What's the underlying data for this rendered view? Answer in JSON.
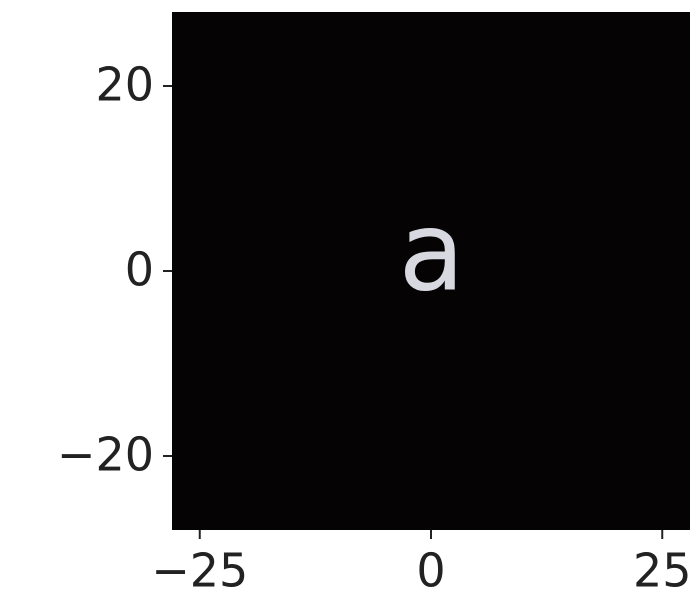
{
  "chart_data": {
    "type": "image",
    "xlim": [
      -28,
      28
    ],
    "ylim": [
      -28,
      28
    ],
    "xticks": [
      {
        "value": -25,
        "label": "−25"
      },
      0,
      25
    ],
    "yticks": [
      {
        "value": -20,
        "label": "−20"
      },
      0,
      20
    ],
    "background": "#050303",
    "annotations": [
      {
        "text": "a",
        "x": 0,
        "y": 0,
        "color": "#d8d8e0"
      }
    ]
  }
}
